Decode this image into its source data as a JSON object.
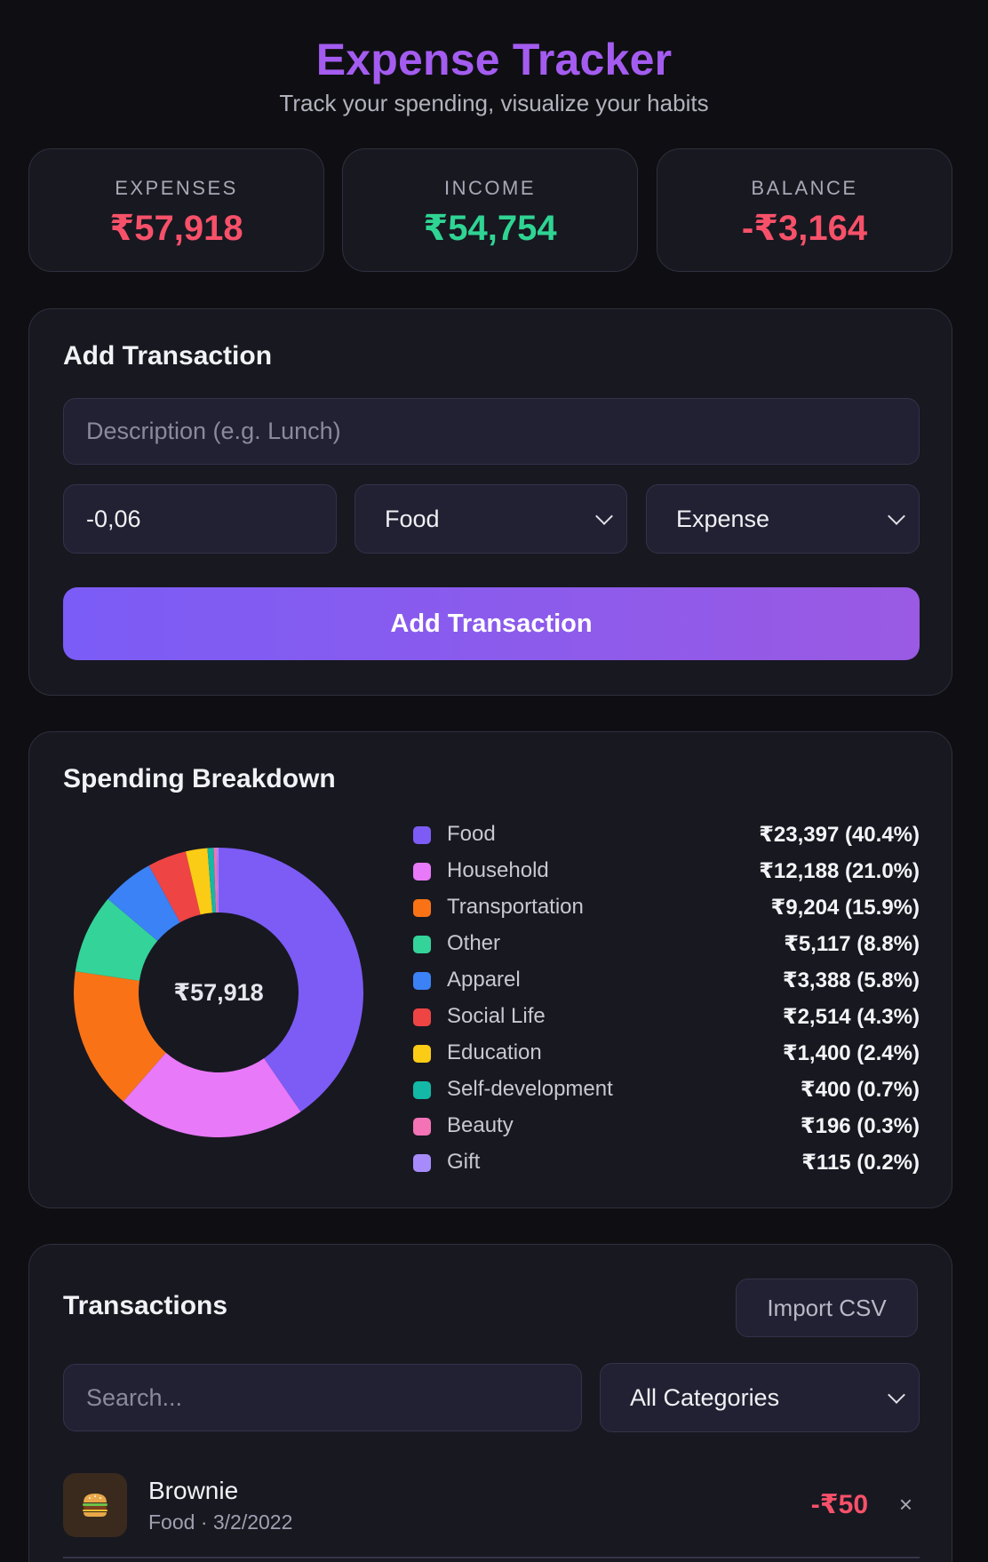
{
  "header": {
    "title": "Expense Tracker",
    "subtitle": "Track your spending, visualize your habits"
  },
  "stats": {
    "expenses": {
      "label": "EXPENSES",
      "value": "₹57,918"
    },
    "income": {
      "label": "INCOME",
      "value": "₹54,754"
    },
    "balance": {
      "label": "BALANCE",
      "value": "-₹3,164"
    }
  },
  "add_form": {
    "title": "Add Transaction",
    "description_placeholder": "Description (e.g. Lunch)",
    "amount_value": "-0,06",
    "category_value": "Food",
    "type_value": "Expense",
    "submit_label": "Add Transaction"
  },
  "breakdown": {
    "title": "Spending Breakdown"
  },
  "chart_data": {
    "type": "pie",
    "center_label": "₹57,918",
    "slices": [
      {
        "name": "Food",
        "value": 23397,
        "label": "₹23,397 (40.4%)",
        "color": "#7c5cf5"
      },
      {
        "name": "Household",
        "value": 12188,
        "label": "₹12,188 (21.0%)",
        "color": "#e879f9"
      },
      {
        "name": "Transportation",
        "value": 9204,
        "label": "₹9,204 (15.9%)",
        "color": "#f97316"
      },
      {
        "name": "Other",
        "value": 5117,
        "label": "₹5,117 (8.8%)",
        "color": "#34d399"
      },
      {
        "name": "Apparel",
        "value": 3388,
        "label": "₹3,388 (5.8%)",
        "color": "#3b82f6"
      },
      {
        "name": "Social Life",
        "value": 2514,
        "label": "₹2,514 (4.3%)",
        "color": "#ef4444"
      },
      {
        "name": "Education",
        "value": 1400,
        "label": "₹1,400 (2.4%)",
        "color": "#facc15"
      },
      {
        "name": "Self-development",
        "value": 400,
        "label": "₹400 (0.7%)",
        "color": "#14b8a6"
      },
      {
        "name": "Beauty",
        "value": 196,
        "label": "₹196 (0.3%)",
        "color": "#f472b6"
      },
      {
        "name": "Gift",
        "value": 115,
        "label": "₹115 (0.2%)",
        "color": "#a78bfa"
      }
    ]
  },
  "transactions": {
    "title": "Transactions",
    "import_label": "Import CSV",
    "search_placeholder": "Search...",
    "filter_value": "All Categories",
    "items": [
      {
        "icon": "burger-icon",
        "name": "Brownie",
        "meta": "Food · 3/2/2022",
        "amount": "-₹50",
        "delete": "×"
      }
    ]
  }
}
